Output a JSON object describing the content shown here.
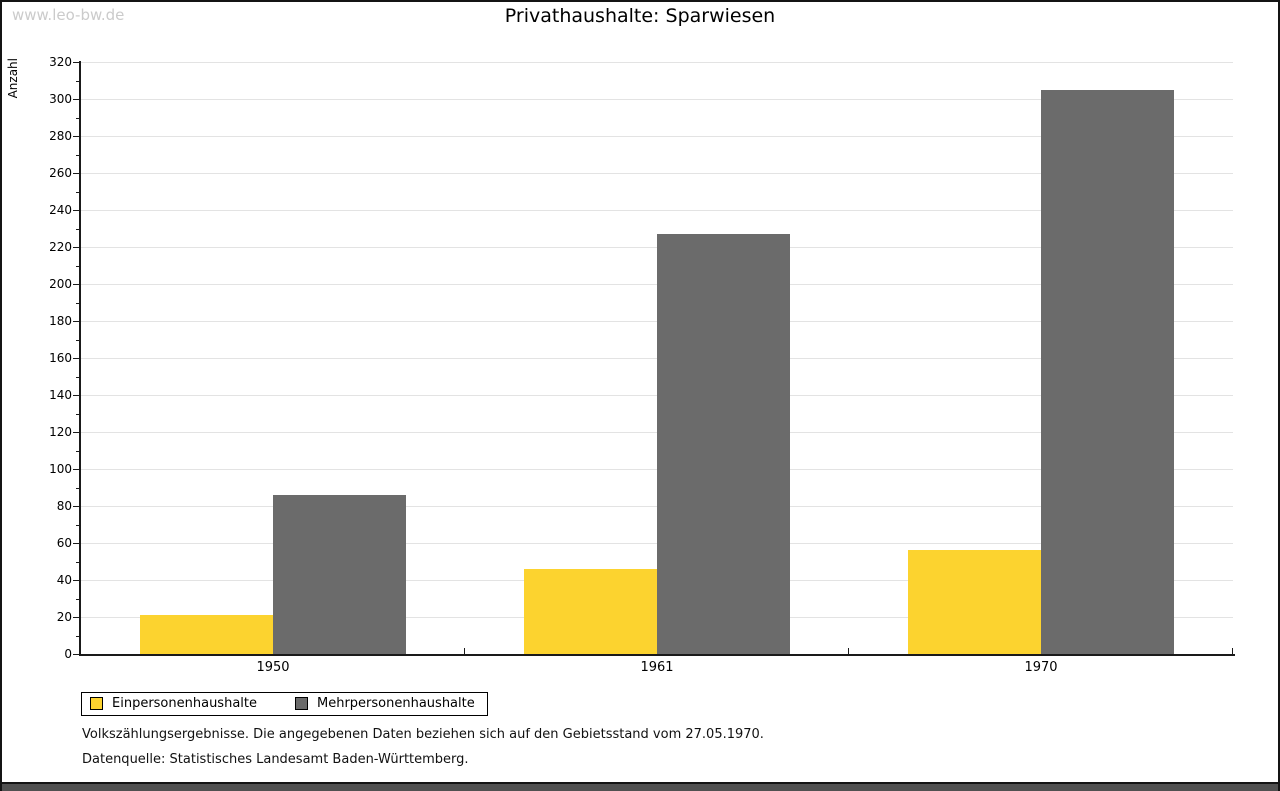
{
  "watermark": "www.leo-bw.de",
  "title": "Privathaushalte: Sparwiesen",
  "footnotes": {
    "line1": "Volkszählungsergebnisse. Die angegebenen Daten beziehen sich auf den Gebietsstand vom 27.05.1970.",
    "line2": "Datenquelle: Statistisches Landesamt Baden-Württemberg."
  },
  "colors": {
    "series1": "#FCD32F",
    "series2": "#6B6B6B",
    "gridline": "#E3E3E3",
    "axis": "#1a1a1a",
    "watermark": "#CBCBCB",
    "bottom_bar": "#505050"
  },
  "chart_data": {
    "type": "bar",
    "title": "Privathaushalte: Sparwiesen",
    "categories": [
      "1950",
      "1961",
      "1970"
    ],
    "series": [
      {
        "name": "Einpersonenhaushalte",
        "color": "#FCD32F",
        "values": [
          21,
          46,
          56
        ]
      },
      {
        "name": "Mehrpersonenhaushalte",
        "color": "#6B6B6B",
        "values": [
          86,
          227,
          305
        ]
      }
    ],
    "xlabel": "",
    "ylabel": "Anzahl",
    "ylim": [
      0,
      320
    ],
    "ytick_step": 20,
    "yminor_step": 10,
    "grid": true,
    "legend_position": "bottom-left"
  }
}
